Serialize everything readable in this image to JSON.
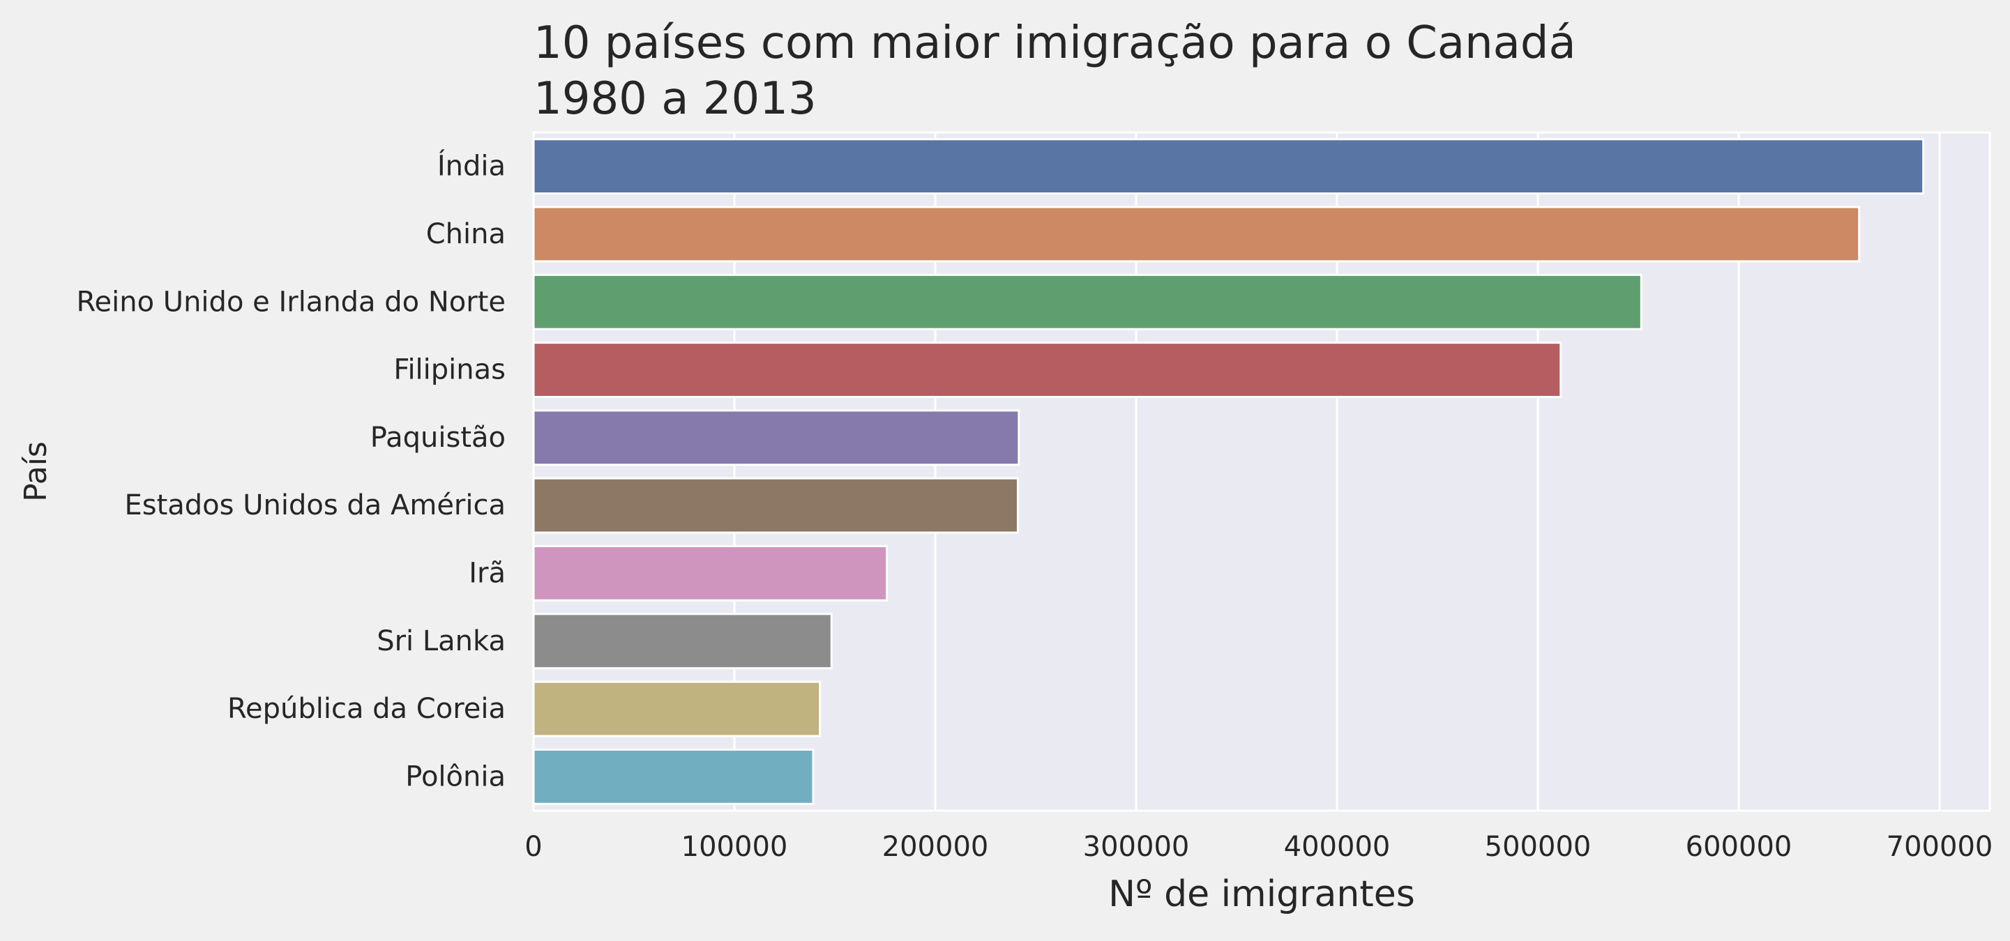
{
  "chart_data": {
    "type": "bar",
    "orientation": "horizontal",
    "title_lines": [
      "10 países com maior imigração para o Canadá",
      "1980 a 2013"
    ],
    "xlabel": "Nº de imigrantes",
    "ylabel": "País",
    "xlim": [
      0,
      725000
    ],
    "xticks": [
      0,
      100000,
      200000,
      300000,
      400000,
      500000,
      600000,
      700000
    ],
    "grid": true,
    "legend": "none",
    "categories": [
      "Índia",
      "China",
      "Reino Unido e Irlanda do Norte",
      "Filipinas",
      "Paquistão",
      "Estados Unidos da América",
      "Irã",
      "Sri Lanka",
      "República da Coreia",
      "Polônia"
    ],
    "values": [
      691904,
      659962,
      551500,
      511391,
      241600,
      241122,
      175923,
      148358,
      142581,
      139241
    ],
    "colors": [
      "#5875a4",
      "#cc8963",
      "#5f9e6e",
      "#b55d60",
      "#857aab",
      "#8d7866",
      "#d095bf",
      "#8c8c8c",
      "#c1b37f",
      "#71aec0"
    ],
    "background_color": "#eaeaf2",
    "figure_color": "#f0f0f0"
  }
}
